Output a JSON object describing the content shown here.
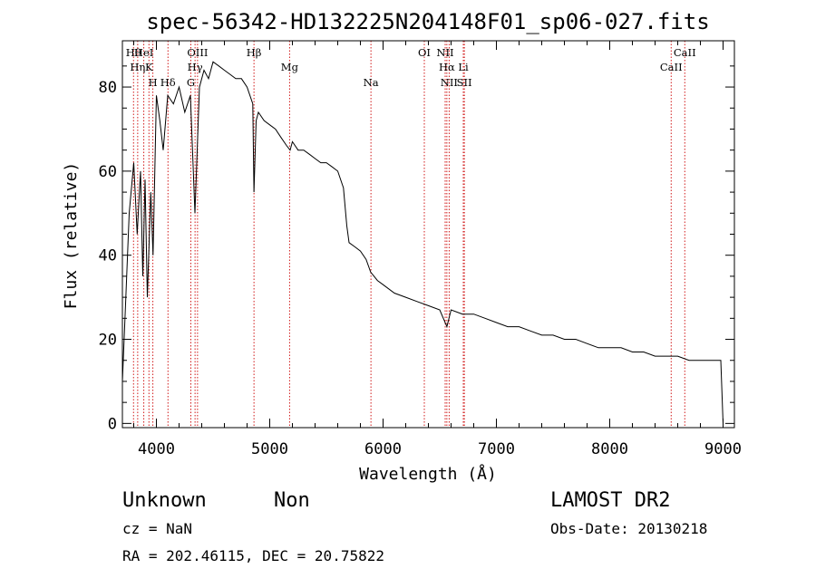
{
  "chart_data": {
    "type": "line",
    "title": "spec-56342-HD132225N204148F01_sp06-027.fits",
    "xlabel": "Wavelength (Å)",
    "ylabel": "Flux (relative)",
    "xlim": [
      3700,
      9100
    ],
    "ylim": [
      -1,
      91
    ],
    "xticks": [
      "4000",
      "5000",
      "6000",
      "7000",
      "8000",
      "9000"
    ],
    "yticks": [
      "0",
      "20",
      "40",
      "60",
      "80"
    ],
    "grid": false,
    "series": [
      {
        "x": [
          3700,
          3730,
          3760,
          3800,
          3830,
          3860,
          3880,
          3900,
          3920,
          3950,
          3970,
          4000,
          4030,
          4060,
          4100,
          4150,
          4200,
          4250,
          4300,
          4340,
          4380,
          4420,
          4460,
          4500,
          4550,
          4600,
          4650,
          4700,
          4750,
          4800,
          4850,
          4861,
          4880,
          4900,
          4950,
          5000,
          5050,
          5100,
          5150,
          5180,
          5200,
          5250,
          5300,
          5350,
          5400,
          5450,
          5500,
          5550,
          5600,
          5650,
          5680,
          5700,
          5750,
          5800,
          5850,
          5890,
          5950,
          6000,
          6100,
          6200,
          6300,
          6400,
          6500,
          6563,
          6600,
          6700,
          6800,
          6900,
          7000,
          7100,
          7200,
          7300,
          7400,
          7500,
          7600,
          7700,
          7800,
          7900,
          8000,
          8100,
          8200,
          8300,
          8400,
          8500,
          8600,
          8700,
          8800,
          8900,
          8980,
          9000
        ],
        "y": [
          10,
          30,
          50,
          62,
          45,
          60,
          35,
          58,
          30,
          55,
          40,
          78,
          72,
          65,
          78,
          76,
          80,
          74,
          78,
          50,
          80,
          84,
          82,
          86,
          85,
          84,
          83,
          82,
          82,
          80,
          76,
          55,
          72,
          74,
          72,
          71,
          70,
          68,
          66,
          65,
          67,
          65,
          65,
          64,
          63,
          62,
          62,
          61,
          60,
          56,
          47,
          43,
          42,
          41,
          39,
          36,
          34,
          33,
          31,
          30,
          29,
          28,
          27,
          23,
          27,
          26,
          26,
          25,
          24,
          23,
          23,
          22,
          21,
          21,
          20,
          20,
          19,
          18,
          18,
          18,
          17,
          17,
          16,
          16,
          16,
          15,
          15,
          15,
          15,
          0
        ]
      }
    ],
    "line_markers": [
      {
        "label": "HeI",
        "x": 3889
      },
      {
        "label": "Hη",
        "x": 3835
      },
      {
        "label": "H",
        "x": 3969
      },
      {
        "label": "Hθ",
        "x": 3798
      },
      {
        "label": "K",
        "x": 3934
      },
      {
        "label": "Hδ",
        "x": 4102
      },
      {
        "label": "OIII",
        "x": 4363
      },
      {
        "label": "Hγ",
        "x": 4341
      },
      {
        "label": "G",
        "x": 4304
      },
      {
        "label": "Hβ",
        "x": 4861
      },
      {
        "label": "Mg",
        "x": 5175
      },
      {
        "label": "Na",
        "x": 5893
      },
      {
        "label": "OI",
        "x": 6364
      },
      {
        "label": "Hα",
        "x": 6563
      },
      {
        "label": "SII",
        "x": 6717
      },
      {
        "label": "NII",
        "x": 6548
      },
      {
        "label": "Li",
        "x": 6708
      },
      {
        "label": "NII",
        "x": 6583
      },
      {
        "label": "CaII",
        "x": 8662
      },
      {
        "label": "CaII",
        "x": 8542
      }
    ]
  },
  "info": {
    "object_class": "Unknown",
    "subclass": "Non",
    "survey": "LAMOST DR2",
    "redshift": "cz = NaN",
    "obs_date": "Obs-Date: 20130218",
    "coords": "RA = 202.46115, DEC =  20.75822"
  },
  "colors": {
    "line": "#000000",
    "marker": "#cc0000"
  }
}
